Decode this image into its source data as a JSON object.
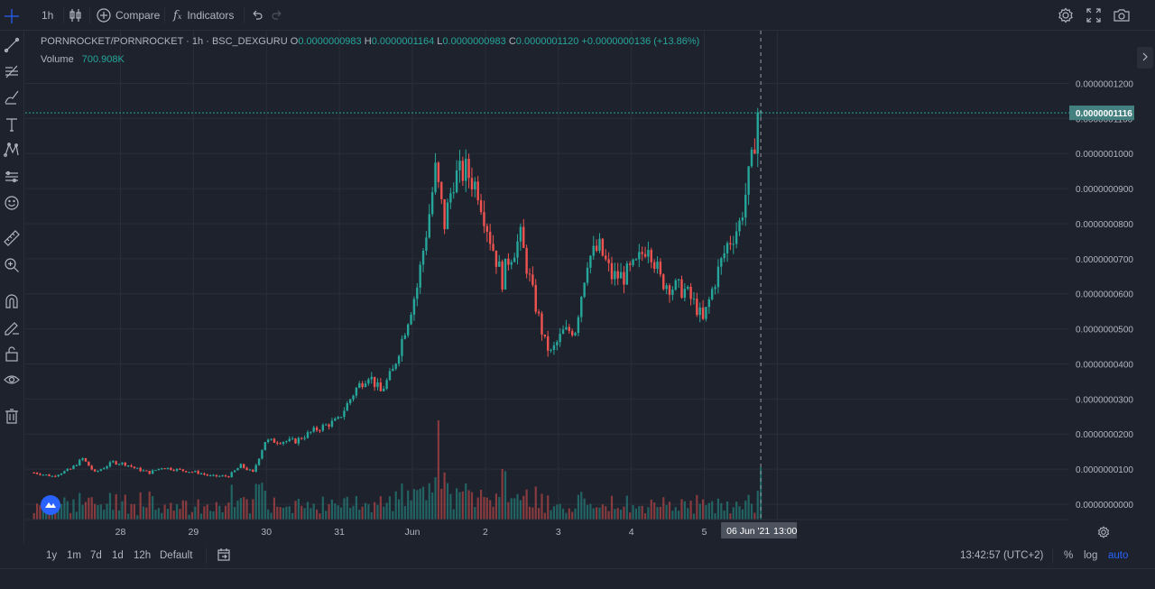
{
  "toolbar": {
    "interval": "1h",
    "compare_label": "Compare",
    "indicators_label": "Indicators"
  },
  "legend": {
    "symbol": "PORNROCKET/PORNROCKET",
    "interval": "1h",
    "exchange": "BSC_DEXGURU",
    "open_key": "O",
    "open": "0.0000000983",
    "high_key": "H",
    "high": "0.0000001164",
    "low_key": "L",
    "low": "0.0000000983",
    "close_key": "C",
    "close": "0.0000001120",
    "change": "+0.0000000136 (+13.86%)",
    "volume_label": "Volume",
    "volume_value": "700.908K"
  },
  "price_axis": {
    "ticks": [
      "0.0000001200",
      "0.0000001100",
      "0.0000001000",
      "0.0000000900",
      "0.0000000800",
      "0.0000000700",
      "0.0000000600",
      "0.0000000500",
      "0.0000000400",
      "0.0000000300",
      "0.0000000200",
      "0.0000000100",
      "0.0000000000"
    ],
    "current_price": "0.0000001116"
  },
  "time_axis": {
    "labels": [
      "28",
      "29",
      "30",
      "31",
      "Jun",
      "2",
      "3",
      "4",
      "5",
      "6"
    ],
    "crosshair_label": "06 Jun '21",
    "crosshair_time": "13:00"
  },
  "ranges": [
    "1y",
    "1m",
    "7d",
    "1d",
    "12h",
    "Default"
  ],
  "status": {
    "clock": "13:42:57 (UTC+2)",
    "percent_label": "%",
    "log_label": "log",
    "auto_label": "auto"
  },
  "colors": {
    "background": "#1e222d",
    "up": "#26a69a",
    "down": "#ef5350",
    "grid": "#2a2e39",
    "accent": "#2962ff"
  },
  "icons": [
    "crosshair-icon",
    "trendline-icon",
    "fib-icon",
    "brush-icon",
    "text-icon",
    "pattern-icon",
    "prediction-icon",
    "emoji-icon",
    "ruler-icon",
    "zoom-icon",
    "magnet-icon",
    "lock-drawing-icon",
    "unlock-icon",
    "eye-icon",
    "trash-icon",
    "settings-icon",
    "fullscreen-icon",
    "camera-icon",
    "undo-icon",
    "redo-icon",
    "candles-icon",
    "calendar-goto-icon",
    "chart-settings-icon",
    "collapse-arrow-icon",
    "logo-icon"
  ],
  "chart_data": {
    "type": "candlestick",
    "series_name": "PORNROCKET/PORNROCKET",
    "ylim": [
      0,
      1.25e-07
    ],
    "x_labels": [
      "28",
      "29",
      "30",
      "31",
      "Jun",
      "2",
      "3",
      "4",
      "5",
      "6"
    ],
    "anchors_close": [
      [
        0,
        9e-09
      ],
      [
        6,
        8e-09
      ],
      [
        12,
        1e-08
      ],
      [
        16,
        1.3e-08
      ],
      [
        20,
        9e-09
      ],
      [
        26,
        1.2e-08
      ],
      [
        30,
        1.15e-08
      ],
      [
        34,
        1e-08
      ],
      [
        38,
        9e-09
      ],
      [
        42,
        1.05e-08
      ],
      [
        46,
        1e-08
      ],
      [
        50,
        9.5e-09
      ],
      [
        54,
        9e-09
      ],
      [
        58,
        8e-09
      ],
      [
        64,
        8e-09
      ],
      [
        68,
        1.1e-08
      ],
      [
        72,
        9e-09
      ],
      [
        76,
        1.8e-08
      ],
      [
        80,
        1.8e-08
      ],
      [
        86,
        1.8e-08
      ],
      [
        92,
        2.1e-08
      ],
      [
        100,
        2.4e-08
      ],
      [
        106,
        3.3e-08
      ],
      [
        110,
        3.7e-08
      ],
      [
        114,
        3.2e-08
      ],
      [
        118,
        3.8e-08
      ],
      [
        122,
        5e-08
      ],
      [
        126,
        6.2e-08
      ],
      [
        130,
        8.3e-08
      ],
      [
        132,
        9.5e-08
      ],
      [
        135,
        8e-08
      ],
      [
        138,
        9.3e-08
      ],
      [
        142,
        9.5e-08
      ],
      [
        146,
        9e-08
      ],
      [
        150,
        7.6e-08
      ],
      [
        154,
        6.4e-08
      ],
      [
        156,
        7e-08
      ],
      [
        160,
        7.6e-08
      ],
      [
        164,
        6e-08
      ],
      [
        168,
        4.6e-08
      ],
      [
        170,
        4.3e-08
      ],
      [
        174,
        4.9e-08
      ],
      [
        178,
        5e-08
      ],
      [
        182,
        7e-08
      ],
      [
        186,
        7.3e-08
      ],
      [
        190,
        6.5e-08
      ],
      [
        194,
        6.5e-08
      ],
      [
        198,
        6.8e-08
      ],
      [
        202,
        7.5e-08
      ],
      [
        206,
        6.4e-08
      ],
      [
        210,
        6.2e-08
      ],
      [
        214,
        6.1e-08
      ],
      [
        218,
        5.6e-08
      ],
      [
        220,
        5.2e-08
      ],
      [
        224,
        6.4e-08
      ],
      [
        228,
        7.4e-08
      ],
      [
        232,
        8e-08
      ],
      [
        236,
        9.7e-08
      ],
      [
        238,
        1.12e-07
      ]
    ],
    "volume_peak_bar": 133,
    "volume_unit": "K"
  }
}
